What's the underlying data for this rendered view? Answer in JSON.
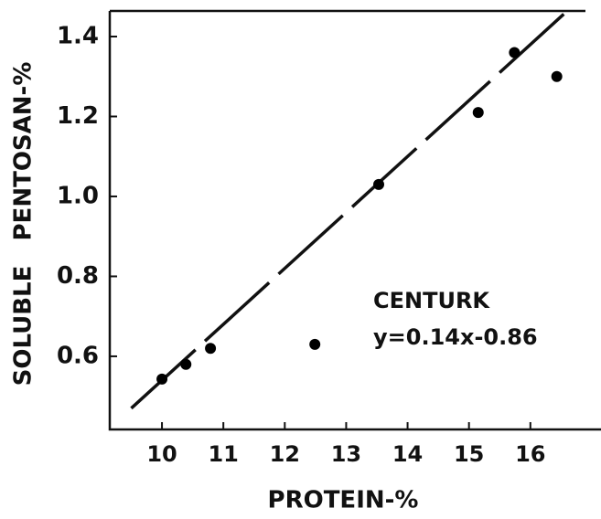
{
  "chart_data": {
    "type": "scatter",
    "x_label": "PROTEIN-%",
    "y_label": "SOLUBLE   PENTOSAN-%",
    "annotations": [
      "CENTURK",
      "y=0.14x-0.86"
    ],
    "series": [
      {
        "name": "CENTURK",
        "color": "#000000",
        "x": [
          10.0,
          10.39,
          10.79,
          12.49,
          13.53,
          15.15,
          15.74,
          16.43
        ],
        "values": [
          0.543,
          0.58,
          0.62,
          0.63,
          1.03,
          1.21,
          1.36,
          1.3
        ]
      }
    ],
    "fit": {
      "slope": 0.14,
      "intercept": -0.86,
      "x_range": [
        9.5,
        16.65
      ]
    },
    "xlim": [
      9.15,
      17.15
    ],
    "xticks": [
      10,
      11,
      12,
      13,
      14,
      15,
      16
    ],
    "ylim": [
      0.417,
      1.464
    ],
    "yticks": [
      {
        "value": 0.6,
        "label": "0.6"
      },
      {
        "value": 0.8,
        "label": "0.8"
      },
      {
        "value": 1.0,
        "label": "1.0"
      },
      {
        "value": 1.2,
        "label": "1.2"
      },
      {
        "value": 1.4,
        "label": "1.4"
      }
    ]
  }
}
